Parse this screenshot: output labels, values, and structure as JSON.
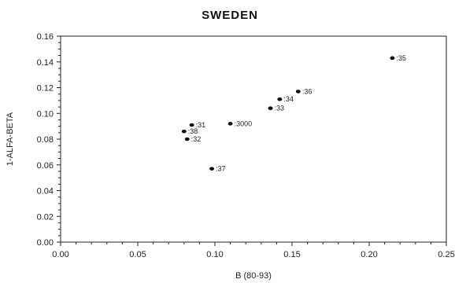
{
  "chart_data": {
    "type": "scatter",
    "title": "SWEDEN",
    "xlabel": "B (80-93)",
    "ylabel": "1-ALFA-BETA",
    "xlim": [
      0.0,
      0.25
    ],
    "ylim": [
      0.0,
      0.16
    ],
    "xticks": [
      "0.00",
      "0.05",
      "0.10",
      "0.15",
      "0.20",
      "0.25"
    ],
    "yticks": [
      "0.00",
      "0.02",
      "0.04",
      "0.06",
      "0.08",
      "0.10",
      "0.12",
      "0.14",
      "0.16"
    ],
    "grid": false,
    "points": [
      {
        "x": 0.215,
        "y": 0.143,
        "label": ":35"
      },
      {
        "x": 0.154,
        "y": 0.117,
        "label": ":36"
      },
      {
        "x": 0.142,
        "y": 0.111,
        "label": ":34"
      },
      {
        "x": 0.136,
        "y": 0.104,
        "label": ":33"
      },
      {
        "x": 0.11,
        "y": 0.092,
        "label": ":3000"
      },
      {
        "x": 0.085,
        "y": 0.091,
        "label": ":31"
      },
      {
        "x": 0.08,
        "y": 0.086,
        "label": ":38"
      },
      {
        "x": 0.082,
        "y": 0.08,
        "label": ":32"
      },
      {
        "x": 0.098,
        "y": 0.057,
        "label": ":37"
      }
    ]
  }
}
